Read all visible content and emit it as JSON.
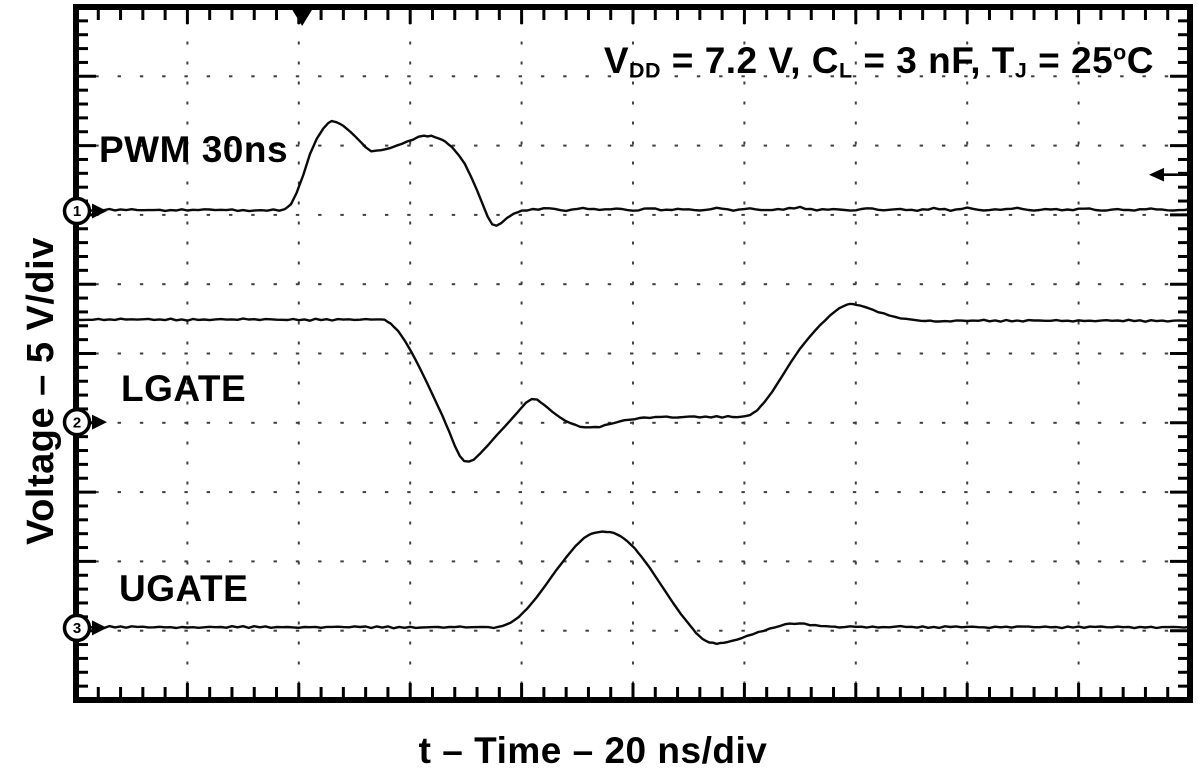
{
  "figure": {
    "background": "#ffffff",
    "ink": "#000000",
    "grid_dot_color": "#3f3f3f",
    "conditions": {
      "text": "VDD = 7.2 V, CL = 3 nF, TJ = 25°C",
      "segments": [
        {
          "text": "V"
        },
        {
          "text": "DD",
          "style": "sub"
        },
        {
          "text": " = 7.2 V, C"
        },
        {
          "text": "L",
          "style": "sub"
        },
        {
          "text": " = 3 nF, T"
        },
        {
          "text": "J",
          "style": "sub"
        },
        {
          "text": " = 25"
        },
        {
          "text": "o",
          "style": "sup"
        },
        {
          "text": "C"
        }
      ]
    },
    "trace_labels": {
      "pwm": "PWM 30ns",
      "lgate": "LGATE",
      "ugate": "UGATE"
    },
    "x_axis_label": "t – Time – 20 ns/div",
    "y_axis_label": "Voltage – 5 V/div"
  },
  "chart_data": {
    "type": "line",
    "title": "",
    "xlabel": "t – Time – 20 ns/div",
    "ylabel": "Voltage – 5 V/div",
    "conditions": "VDD = 7.2 V, CL = 3 nF, TJ = 25°C",
    "x_per_div_ns": 20,
    "y_per_div_V": 5,
    "x_divisions": 10,
    "y_divisions": 10,
    "x_range_ns": [
      0,
      200
    ],
    "grid": "dotted graticule, 5 minor ticks per division on all borders",
    "legend": "inline labels beside each trace",
    "trigger": {
      "time_marker_div": 2.03,
      "level_marker_div_from_top": 2.42
    },
    "series": [
      {
        "name": "PWM 30ns",
        "channel": 1,
        "zero_div_from_top": 2.944,
        "points": [
          [
            0,
            0.05
          ],
          [
            8,
            0.1
          ],
          [
            16,
            0.05
          ],
          [
            24,
            0.1
          ],
          [
            30,
            0.05
          ],
          [
            36.5,
            0.05
          ],
          [
            37.5,
            0.1
          ],
          [
            38.6,
            0.5
          ],
          [
            39.6,
            1.3
          ],
          [
            40.8,
            2.6
          ],
          [
            42,
            4.1
          ],
          [
            43.2,
            5.2
          ],
          [
            44.4,
            5.95
          ],
          [
            45.3,
            6.35
          ],
          [
            45.9,
            6.5
          ],
          [
            46.8,
            6.42
          ],
          [
            48,
            6.15
          ],
          [
            49.3,
            5.7
          ],
          [
            50.7,
            5.15
          ],
          [
            52,
            4.6
          ],
          [
            53,
            4.32
          ],
          [
            54,
            4.3
          ],
          [
            55.5,
            4.45
          ],
          [
            57.5,
            4.7
          ],
          [
            59.5,
            5.0
          ],
          [
            61.5,
            5.35
          ],
          [
            62.5,
            5.45
          ],
          [
            63.8,
            5.42
          ],
          [
            65,
            5.25
          ],
          [
            66.3,
            5.0
          ],
          [
            67.5,
            4.6
          ],
          [
            68.7,
            4.05
          ],
          [
            69.8,
            3.4
          ],
          [
            70.9,
            2.5
          ],
          [
            72,
            1.5
          ],
          [
            73,
            0.5
          ],
          [
            73.9,
            -0.4
          ],
          [
            74.7,
            -0.95
          ],
          [
            75.5,
            -1.05
          ],
          [
            76.4,
            -0.85
          ],
          [
            77.4,
            -0.5
          ],
          [
            78.6,
            -0.2
          ],
          [
            80,
            0
          ],
          [
            82,
            0.12
          ],
          [
            85,
            0.2
          ],
          [
            88,
            0.02
          ],
          [
            91,
            0.22
          ],
          [
            94,
            0.08
          ],
          [
            97,
            0.18
          ],
          [
            100,
            0.02
          ],
          [
            103,
            0.2
          ],
          [
            106,
            0.06
          ],
          [
            109,
            0.16
          ],
          [
            112,
            0.02
          ],
          [
            115,
            0.22
          ],
          [
            118,
            0.05
          ],
          [
            121,
            0.18
          ],
          [
            124,
            0.04
          ],
          [
            127,
            0.15
          ],
          [
            130,
            0.25
          ],
          [
            133,
            0.06
          ],
          [
            136,
            0.15
          ],
          [
            139,
            0.02
          ],
          [
            142,
            0.2
          ],
          [
            145,
            0.06
          ],
          [
            148,
            0.14
          ],
          [
            151,
            0.03
          ],
          [
            154,
            0.2
          ],
          [
            157,
            0.05
          ],
          [
            160,
            0.22
          ],
          [
            163,
            0.04
          ],
          [
            166,
            0.12
          ],
          [
            169,
            0.2
          ],
          [
            172,
            0.03
          ],
          [
            175,
            0.15
          ],
          [
            178,
            0.05
          ],
          [
            181,
            0.2
          ],
          [
            184,
            0.03
          ],
          [
            187,
            0.12
          ],
          [
            190,
            0.05
          ],
          [
            193,
            0.18
          ],
          [
            196,
            0.04
          ],
          [
            200,
            0.1
          ]
        ]
      },
      {
        "name": "LGATE",
        "channel": 2,
        "zero_div_from_top": 5.99,
        "points": [
          [
            0,
            7.38
          ],
          [
            10,
            7.42
          ],
          [
            20,
            7.38
          ],
          [
            30,
            7.42
          ],
          [
            40,
            7.38
          ],
          [
            50,
            7.4
          ],
          [
            54,
            7.4
          ],
          [
            55.4,
            7.35
          ],
          [
            56.5,
            7.1
          ],
          [
            57.8,
            6.6
          ],
          [
            59,
            5.9
          ],
          [
            60.3,
            5.0
          ],
          [
            61.6,
            4.0
          ],
          [
            63,
            2.85
          ],
          [
            64.4,
            1.65
          ],
          [
            65.8,
            0.45
          ],
          [
            67,
            -0.7
          ],
          [
            68,
            -1.7
          ],
          [
            68.9,
            -2.45
          ],
          [
            69.7,
            -2.82
          ],
          [
            70.5,
            -2.88
          ],
          [
            71.4,
            -2.7
          ],
          [
            72.5,
            -2.3
          ],
          [
            74,
            -1.65
          ],
          [
            75.5,
            -0.95
          ],
          [
            77,
            -0.3
          ],
          [
            78.5,
            0.35
          ],
          [
            79.8,
            0.95
          ],
          [
            80.8,
            1.4
          ],
          [
            81.8,
            1.68
          ],
          [
            82.8,
            1.6
          ],
          [
            84,
            1.25
          ],
          [
            85.5,
            0.75
          ],
          [
            87,
            0.3
          ],
          [
            88.8,
            -0.1
          ],
          [
            90.5,
            -0.32
          ],
          [
            92.3,
            -0.4
          ],
          [
            94,
            -0.32
          ],
          [
            95.8,
            -0.15
          ],
          [
            97.5,
            0.05
          ],
          [
            99.5,
            0.2
          ],
          [
            102,
            0.32
          ],
          [
            105,
            0.38
          ],
          [
            108,
            0.34
          ],
          [
            111,
            0.4
          ],
          [
            114,
            0.36
          ],
          [
            117,
            0.4
          ],
          [
            119.5,
            0.4
          ],
          [
            121,
            0.5
          ],
          [
            122.3,
            0.85
          ],
          [
            123.6,
            1.45
          ],
          [
            125,
            2.2
          ],
          [
            126.6,
            3.2
          ],
          [
            128.3,
            4.3
          ],
          [
            130,
            5.3
          ],
          [
            131.8,
            6.2
          ],
          [
            133.6,
            7.0
          ],
          [
            135.4,
            7.7
          ],
          [
            137,
            8.2
          ],
          [
            138.3,
            8.45
          ],
          [
            139.5,
            8.5
          ],
          [
            140.8,
            8.4
          ],
          [
            142.3,
            8.2
          ],
          [
            144,
            7.95
          ],
          [
            146,
            7.7
          ],
          [
            148,
            7.5
          ],
          [
            150,
            7.38
          ],
          [
            152.5,
            7.3
          ],
          [
            155,
            7.28
          ],
          [
            158,
            7.3
          ],
          [
            162,
            7.33
          ],
          [
            167,
            7.3
          ],
          [
            173,
            7.33
          ],
          [
            180,
            7.3
          ],
          [
            187,
            7.33
          ],
          [
            194,
            7.3
          ],
          [
            200,
            7.32
          ]
        ]
      },
      {
        "name": "UGATE",
        "channel": 3,
        "zero_div_from_top": 8.96,
        "points": [
          [
            0,
            0.04
          ],
          [
            10,
            0.08
          ],
          [
            20,
            0.03
          ],
          [
            30,
            0.08
          ],
          [
            40,
            0.04
          ],
          [
            50,
            0.08
          ],
          [
            60,
            0.03
          ],
          [
            70,
            0.07
          ],
          [
            75,
            0.04
          ],
          [
            76.5,
            0.1
          ],
          [
            78,
            0.35
          ],
          [
            79.5,
            0.8
          ],
          [
            81,
            1.4
          ],
          [
            82.7,
            2.2
          ],
          [
            84.5,
            3.2
          ],
          [
            86.3,
            4.2
          ],
          [
            88,
            5.1
          ],
          [
            89.7,
            5.9
          ],
          [
            91.2,
            6.5
          ],
          [
            92.5,
            6.8
          ],
          [
            93.8,
            6.9
          ],
          [
            95.2,
            6.92
          ],
          [
            96.5,
            6.85
          ],
          [
            97.8,
            6.6
          ],
          [
            99,
            6.25
          ],
          [
            100.3,
            5.75
          ],
          [
            101.6,
            5.1
          ],
          [
            103,
            4.35
          ],
          [
            104.4,
            3.5
          ],
          [
            105.8,
            2.65
          ],
          [
            107.2,
            1.8
          ],
          [
            108.6,
            1.0
          ],
          [
            110,
            0.3
          ],
          [
            111.3,
            -0.35
          ],
          [
            112.5,
            -0.8
          ],
          [
            113.7,
            -1.05
          ],
          [
            115,
            -1.15
          ],
          [
            116.3,
            -1.1
          ],
          [
            117.8,
            -0.95
          ],
          [
            119.5,
            -0.72
          ],
          [
            121.5,
            -0.45
          ],
          [
            123.5,
            -0.18
          ],
          [
            125.5,
            0.05
          ],
          [
            127.3,
            0.25
          ],
          [
            129,
            0.33
          ],
          [
            130.8,
            0.28
          ],
          [
            132.7,
            0.18
          ],
          [
            134.7,
            0.1
          ],
          [
            137,
            0.05
          ],
          [
            140,
            0.1
          ],
          [
            144,
            0.04
          ],
          [
            148,
            0.1
          ],
          [
            153,
            0.04
          ],
          [
            158,
            0.09
          ],
          [
            164,
            0.04
          ],
          [
            170,
            0.09
          ],
          [
            177,
            0.04
          ],
          [
            184,
            0.08
          ],
          [
            191,
            0.04
          ],
          [
            200,
            0.06
          ]
        ]
      }
    ]
  }
}
